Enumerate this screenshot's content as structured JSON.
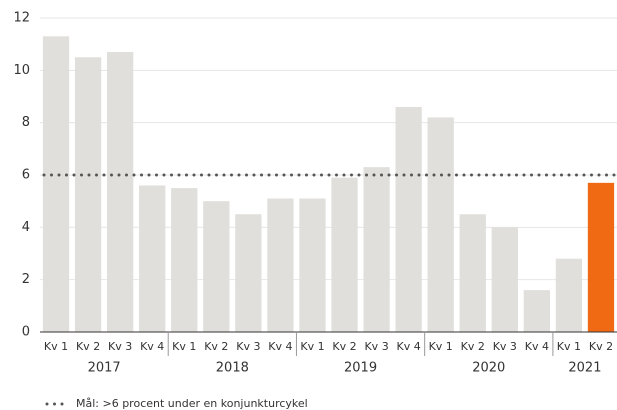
{
  "chart_data": {
    "type": "bar",
    "categories": [
      "Kv 1",
      "Kv 2",
      "Kv 3",
      "Kv 4",
      "Kv 1",
      "Kv 2",
      "Kv 3",
      "Kv 4",
      "Kv 1",
      "Kv 2",
      "Kv 3",
      "Kv 4",
      "Kv 1",
      "Kv 2",
      "Kv 3",
      "Kv 4",
      "Kv 1",
      "Kv 2"
    ],
    "groups": [
      {
        "label": "2017",
        "count": 4
      },
      {
        "label": "2018",
        "count": 4
      },
      {
        "label": "2019",
        "count": 4
      },
      {
        "label": "2020",
        "count": 4
      },
      {
        "label": "2021",
        "count": 2
      }
    ],
    "values": [
      11.3,
      10.5,
      10.7,
      5.6,
      5.5,
      5.0,
      4.5,
      5.1,
      5.1,
      5.9,
      6.3,
      8.6,
      8.2,
      4.5,
      4.0,
      1.6,
      2.8,
      5.7
    ],
    "colors": [
      "#e0dfdb",
      "#e0dfdb",
      "#e0dfdb",
      "#e0dfdb",
      "#e0dfdb",
      "#e0dfdb",
      "#e0dfdb",
      "#e0dfdb",
      "#e0dfdb",
      "#e0dfdb",
      "#e0dfdb",
      "#e0dfdb",
      "#e0dfdb",
      "#e0dfdb",
      "#e0dfdb",
      "#e0dfdb",
      "#e0dfdb",
      "#f06a14"
    ],
    "ylim": [
      0,
      12
    ],
    "yticks": [
      0,
      2,
      4,
      6,
      8,
      10,
      12
    ],
    "grid": true,
    "reference_line": {
      "value": 6,
      "label": "Mål: >6 procent under en konjunkturcykel",
      "color": "#555555"
    }
  }
}
